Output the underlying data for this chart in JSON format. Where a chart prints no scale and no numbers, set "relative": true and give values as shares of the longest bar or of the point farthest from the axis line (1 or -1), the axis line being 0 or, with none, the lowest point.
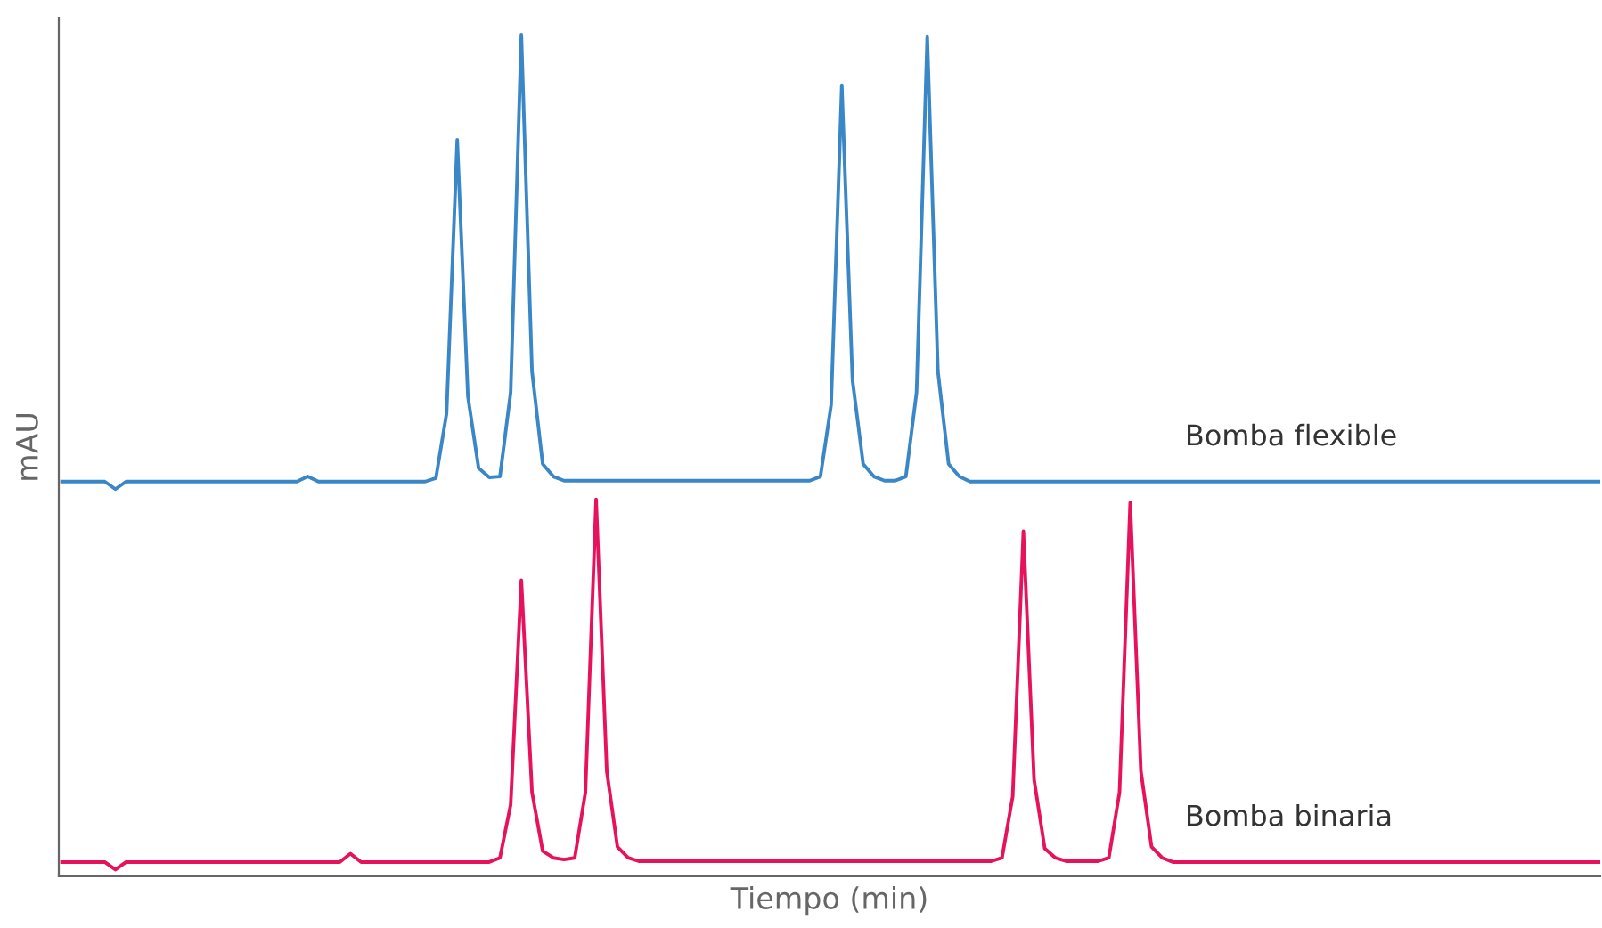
{
  "chart_data": {
    "type": "line",
    "relative": true,
    "xlabel": "Tiempo (min)",
    "ylabel": "mAU",
    "legend": false,
    "marker": "none",
    "line_style": "solid",
    "tick_labels": false,
    "categories": [
      null,
      null,
      null,
      null,
      null,
      null,
      null,
      null,
      null,
      null,
      null,
      null,
      null,
      null,
      null,
      null,
      null,
      null,
      null,
      null,
      null,
      null,
      null,
      null,
      null,
      null,
      null,
      null,
      null,
      null,
      null,
      null,
      null,
      null,
      null,
      null,
      null,
      null,
      null,
      null,
      null,
      null,
      null,
      null,
      null,
      null,
      null,
      null,
      null,
      null,
      null,
      null,
      null,
      null,
      null,
      null,
      null,
      null,
      null,
      null,
      null,
      null,
      null,
      null,
      null,
      null,
      null,
      null,
      null,
      null,
      null,
      null,
      null,
      null,
      null,
      null,
      null,
      null,
      null,
      null,
      null,
      null,
      null,
      null,
      null,
      null,
      null,
      null,
      null,
      null,
      null,
      null,
      null,
      null,
      null,
      null,
      null,
      null,
      null,
      null,
      null,
      null,
      null,
      null,
      null,
      null,
      null,
      null,
      null,
      null,
      null,
      null,
      null,
      null,
      null,
      null,
      null,
      null,
      null,
      null,
      null,
      null,
      null,
      null,
      null,
      null,
      null,
      null,
      null,
      null,
      null,
      null,
      null,
      null,
      null,
      null,
      null,
      null,
      null,
      null,
      null,
      null,
      null,
      null,
      null
    ],
    "series": [
      {
        "name": "Bomba flexible",
        "color": "#3a87c8",
        "values": [
          0.469,
          0.469,
          0.469,
          0.469,
          0.469,
          0.46,
          0.469,
          0.469,
          0.469,
          0.469,
          0.469,
          0.469,
          0.469,
          0.469,
          0.469,
          0.469,
          0.469,
          0.469,
          0.469,
          0.469,
          0.469,
          0.469,
          0.469,
          0.475,
          0.469,
          0.469,
          0.469,
          0.469,
          0.469,
          0.469,
          0.469,
          0.469,
          0.469,
          0.469,
          0.469,
          0.473,
          0.55,
          0.875,
          0.57,
          0.485,
          0.474,
          0.475,
          0.575,
          1.0,
          0.6,
          0.49,
          0.475,
          0.47,
          0.47,
          0.47,
          0.47,
          0.47,
          0.47,
          0.47,
          0.47,
          0.47,
          0.47,
          0.47,
          0.47,
          0.47,
          0.47,
          0.47,
          0.47,
          0.47,
          0.47,
          0.47,
          0.47,
          0.47,
          0.47,
          0.47,
          0.47,
          0.475,
          0.56,
          0.94,
          0.59,
          0.49,
          0.475,
          0.47,
          0.47,
          0.475,
          0.575,
          0.998,
          0.6,
          0.49,
          0.475,
          0.469,
          0.469,
          0.469,
          0.469,
          0.469,
          0.469,
          0.469,
          0.469,
          0.469,
          0.469,
          0.469,
          0.469,
          0.469,
          0.469,
          0.469,
          0.469,
          0.469,
          0.469,
          0.469,
          0.469,
          0.469,
          0.469,
          0.469,
          0.469,
          0.469,
          0.469,
          0.469,
          0.469,
          0.469,
          0.469,
          0.469,
          0.469,
          0.469,
          0.469,
          0.469,
          0.469,
          0.469,
          0.469,
          0.469,
          0.469,
          0.469,
          0.469,
          0.469,
          0.469,
          0.469,
          0.469,
          0.469,
          0.469,
          0.469,
          0.469,
          0.469,
          0.469,
          0.469,
          0.469,
          0.469,
          0.469,
          0.469,
          0.469,
          0.469,
          0.469
        ]
      },
      {
        "name": "Bomba binaria",
        "color": "#e8125c",
        "values": [
          0.017,
          0.017,
          0.017,
          0.017,
          0.017,
          0.008,
          0.017,
          0.017,
          0.017,
          0.017,
          0.017,
          0.017,
          0.017,
          0.017,
          0.017,
          0.017,
          0.017,
          0.017,
          0.017,
          0.017,
          0.017,
          0.017,
          0.017,
          0.017,
          0.017,
          0.017,
          0.017,
          0.027,
          0.017,
          0.017,
          0.017,
          0.017,
          0.017,
          0.017,
          0.017,
          0.017,
          0.017,
          0.017,
          0.017,
          0.017,
          0.017,
          0.022,
          0.085,
          0.352,
          0.1,
          0.03,
          0.022,
          0.02,
          0.022,
          0.1,
          0.448,
          0.125,
          0.035,
          0.022,
          0.018,
          0.018,
          0.018,
          0.018,
          0.018,
          0.018,
          0.018,
          0.018,
          0.018,
          0.018,
          0.018,
          0.018,
          0.018,
          0.018,
          0.018,
          0.018,
          0.018,
          0.018,
          0.018,
          0.018,
          0.018,
          0.018,
          0.018,
          0.018,
          0.018,
          0.018,
          0.018,
          0.018,
          0.018,
          0.018,
          0.018,
          0.018,
          0.018,
          0.018,
          0.022,
          0.095,
          0.41,
          0.115,
          0.033,
          0.022,
          0.018,
          0.018,
          0.018,
          0.018,
          0.022,
          0.1,
          0.444,
          0.125,
          0.035,
          0.022,
          0.017,
          0.017,
          0.017,
          0.017,
          0.017,
          0.017,
          0.017,
          0.017,
          0.017,
          0.017,
          0.017,
          0.017,
          0.017,
          0.017,
          0.017,
          0.017,
          0.017,
          0.017,
          0.017,
          0.017,
          0.017,
          0.017,
          0.017,
          0.017,
          0.017,
          0.017,
          0.017,
          0.017,
          0.017,
          0.017,
          0.017,
          0.017,
          0.017,
          0.017,
          0.017,
          0.017,
          0.017,
          0.017,
          0.017,
          0.017,
          0.017
        ]
      }
    ]
  }
}
